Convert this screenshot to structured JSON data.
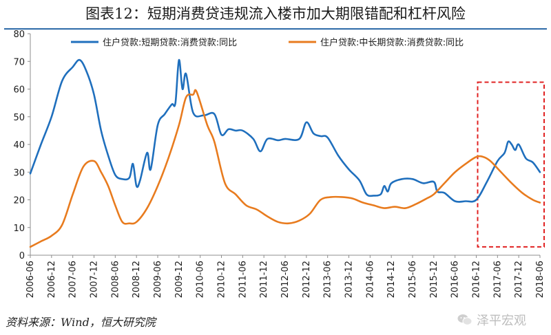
{
  "title": "图表12：短期消费贷违规流入楼市加大期限错配和杠杆风险",
  "source": "资料来源：Wind，恒大研究院",
  "watermark": "泽平宏观",
  "colors": {
    "series1": "#1f6fbd",
    "series2": "#e87b1e",
    "highlight": "#e02020",
    "title_rule": "#2d6aa8"
  },
  "chart_data": {
    "type": "line",
    "ylim": [
      0,
      80
    ],
    "yticks": [
      0,
      10,
      20,
      30,
      40,
      50,
      60,
      70,
      80
    ],
    "grid": false,
    "legend_position": "top",
    "x_start": "2006-06",
    "x_end": "2018-06",
    "x_tick_labels": [
      "2006-06",
      "2006-12",
      "2007-06",
      "2007-12",
      "2008-06",
      "2008-12",
      "2009-06",
      "2009-12",
      "2010-06",
      "2010-12",
      "2011-06",
      "2011-12",
      "2012-06",
      "2012-12",
      "2013-06",
      "2013-12",
      "2014-06",
      "2014-12",
      "2015-06",
      "2015-12",
      "2016-06",
      "2016-12",
      "2017-06",
      "2017-12",
      "2018-06"
    ],
    "highlight_range": [
      "2016-12",
      "2018-06"
    ],
    "series": [
      {
        "name": "住户贷款:短期贷款:消费贷款:同比",
        "color": "#1f6fbd",
        "points": [
          [
            "2006-06",
            29.5
          ],
          [
            "2006-09",
            40
          ],
          [
            "2006-12",
            50
          ],
          [
            "2007-03",
            63
          ],
          [
            "2007-06",
            68
          ],
          [
            "2007-08",
            70.5
          ],
          [
            "2007-10",
            66
          ],
          [
            "2007-12",
            58
          ],
          [
            "2008-02",
            45
          ],
          [
            "2008-04",
            36
          ],
          [
            "2008-06",
            29
          ],
          [
            "2008-08",
            27.5
          ],
          [
            "2008-10",
            28
          ],
          [
            "2008-11",
            33
          ],
          [
            "2008-12",
            25
          ],
          [
            "2009-01",
            27
          ],
          [
            "2009-03",
            37
          ],
          [
            "2009-04",
            31
          ],
          [
            "2009-06",
            47
          ],
          [
            "2009-08",
            51
          ],
          [
            "2009-10",
            54.5
          ],
          [
            "2009-11",
            55
          ],
          [
            "2009-12",
            70.5
          ],
          [
            "2010-01",
            60
          ],
          [
            "2010-02",
            65.5
          ],
          [
            "2010-04",
            51.5
          ],
          [
            "2010-07",
            50.5
          ],
          [
            "2010-10",
            51
          ],
          [
            "2010-12",
            43.5
          ],
          [
            "2011-02",
            45.5
          ],
          [
            "2011-04",
            45
          ],
          [
            "2011-06",
            45
          ],
          [
            "2011-09",
            42
          ],
          [
            "2011-11",
            37.5
          ],
          [
            "2012-01",
            42
          ],
          [
            "2012-04",
            41.5
          ],
          [
            "2012-06",
            42
          ],
          [
            "2012-10",
            42
          ],
          [
            "2012-12",
            48
          ],
          [
            "2013-02",
            44
          ],
          [
            "2013-04",
            43
          ],
          [
            "2013-06",
            42.5
          ],
          [
            "2013-09",
            36
          ],
          [
            "2013-12",
            31
          ],
          [
            "2014-03",
            27
          ],
          [
            "2014-05",
            22
          ],
          [
            "2014-07",
            21.5
          ],
          [
            "2014-09",
            22
          ],
          [
            "2014-10",
            25
          ],
          [
            "2014-11",
            23
          ],
          [
            "2014-12",
            26
          ],
          [
            "2015-03",
            27.5
          ],
          [
            "2015-06",
            27.5
          ],
          [
            "2015-09",
            26
          ],
          [
            "2015-12",
            26.5
          ],
          [
            "2016-01",
            23
          ],
          [
            "2016-03",
            22.5
          ],
          [
            "2016-06",
            19.5
          ],
          [
            "2016-09",
            19.5
          ],
          [
            "2016-12",
            20
          ],
          [
            "2017-03",
            26.5
          ],
          [
            "2017-06",
            34
          ],
          [
            "2017-08",
            37
          ],
          [
            "2017-09",
            41
          ],
          [
            "2017-10",
            40
          ],
          [
            "2017-11",
            38
          ],
          [
            "2017-12",
            40
          ],
          [
            "2018-02",
            35
          ],
          [
            "2018-04",
            33.5
          ],
          [
            "2018-06",
            30
          ]
        ]
      },
      {
        "name": "住户贷款:中长期贷款:消费贷款:同比",
        "color": "#e87b1e",
        "points": [
          [
            "2006-06",
            3
          ],
          [
            "2006-09",
            5
          ],
          [
            "2006-12",
            7
          ],
          [
            "2007-03",
            11
          ],
          [
            "2007-06",
            22
          ],
          [
            "2007-09",
            32
          ],
          [
            "2007-12",
            34
          ],
          [
            "2008-02",
            30
          ],
          [
            "2008-04",
            25
          ],
          [
            "2008-06",
            18
          ],
          [
            "2008-08",
            12
          ],
          [
            "2008-10",
            11.5
          ],
          [
            "2008-12",
            12
          ],
          [
            "2009-03",
            17
          ],
          [
            "2009-06",
            25
          ],
          [
            "2009-09",
            35
          ],
          [
            "2009-12",
            47
          ],
          [
            "2010-02",
            57
          ],
          [
            "2010-04",
            58
          ],
          [
            "2010-05",
            59
          ],
          [
            "2010-08",
            47
          ],
          [
            "2010-10",
            41
          ],
          [
            "2011-01",
            26
          ],
          [
            "2011-04",
            22
          ],
          [
            "2011-07",
            18
          ],
          [
            "2011-10",
            16.5
          ],
          [
            "2012-01",
            14
          ],
          [
            "2012-04",
            12
          ],
          [
            "2012-07",
            11.5
          ],
          [
            "2012-10",
            12.5
          ],
          [
            "2013-01",
            15
          ],
          [
            "2013-04",
            20
          ],
          [
            "2013-07",
            21
          ],
          [
            "2013-10",
            21
          ],
          [
            "2014-01",
            20.5
          ],
          [
            "2014-04",
            19
          ],
          [
            "2014-07",
            18
          ],
          [
            "2014-10",
            17
          ],
          [
            "2015-01",
            17.5
          ],
          [
            "2015-04",
            17
          ],
          [
            "2015-07",
            18.5
          ],
          [
            "2015-10",
            20.5
          ],
          [
            "2015-12",
            22
          ],
          [
            "2016-03",
            26
          ],
          [
            "2016-06",
            30
          ],
          [
            "2016-09",
            33
          ],
          [
            "2016-12",
            35.5
          ],
          [
            "2017-02",
            35.5
          ],
          [
            "2017-04",
            34
          ],
          [
            "2017-07",
            30
          ],
          [
            "2017-10",
            26
          ],
          [
            "2018-01",
            22.5
          ],
          [
            "2018-04",
            20
          ],
          [
            "2018-06",
            19
          ]
        ]
      }
    ]
  }
}
